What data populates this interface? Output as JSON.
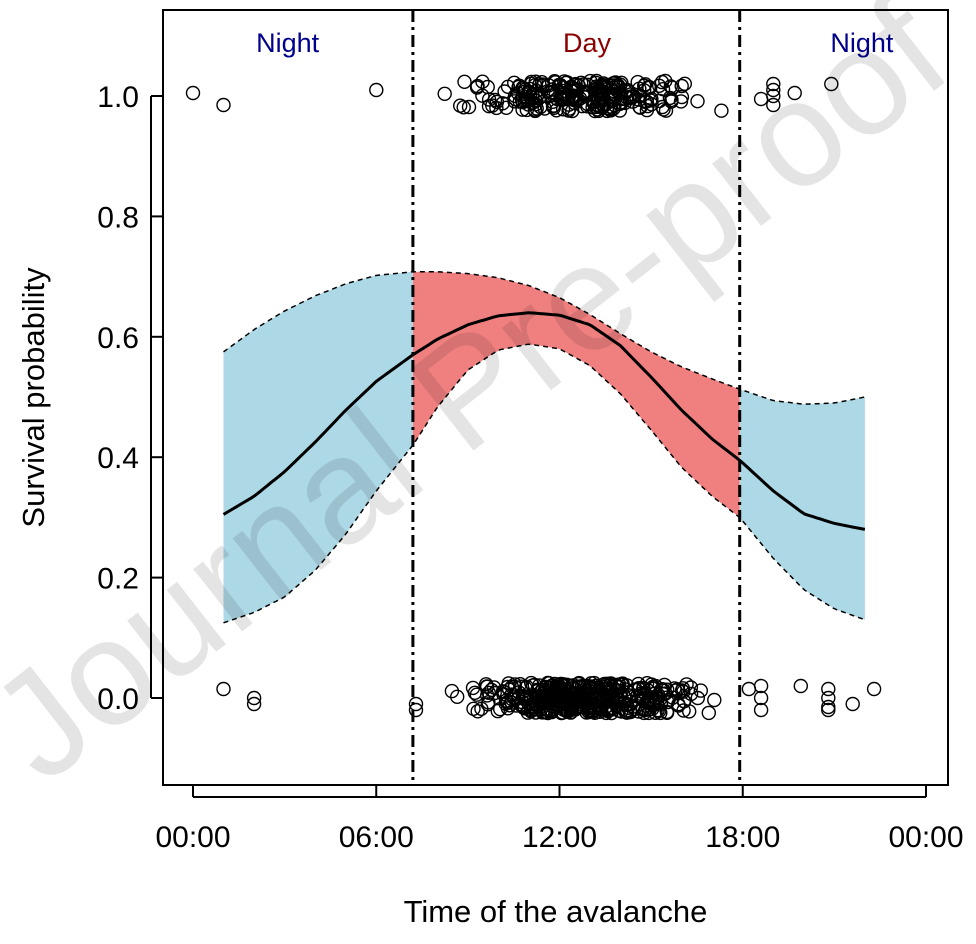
{
  "chart_data": {
    "type": "line",
    "title": "",
    "xlabel": "Time of the avalanche",
    "ylabel": "Survival probability",
    "xlim": [
      0,
      24
    ],
    "ylim": [
      -0.13,
      1.15
    ],
    "x_ticks": [
      0,
      6,
      12,
      18,
      24
    ],
    "x_tick_labels": [
      "00:00",
      "06:00",
      "12:00",
      "18:00",
      "00:00"
    ],
    "y_ticks": [
      0.0,
      0.2,
      0.4,
      0.6,
      0.8,
      1.0
    ],
    "y_tick_labels": [
      "0.0",
      "0.2",
      "0.4",
      "0.6",
      "0.8",
      "1.0"
    ],
    "grid": false,
    "colors": {
      "night_band": "#add8e6",
      "day_band": "#f08080",
      "night_text": "#00008b",
      "day_text": "#8b0000"
    },
    "period_boundaries": [
      7.2,
      17.9
    ],
    "period_labels": [
      {
        "text": "Night",
        "x": 3.1,
        "kind": "night"
      },
      {
        "text": "Day",
        "x": 12.9,
        "kind": "day"
      },
      {
        "text": "Night",
        "x": 21.9,
        "kind": "night"
      }
    ],
    "fitted_curve": {
      "x": [
        1.0,
        2.0,
        3.0,
        4.0,
        5.0,
        6.0,
        7.2,
        8.0,
        9.0,
        10.0,
        11.0,
        12.0,
        13.0,
        14.0,
        15.0,
        16.0,
        17.0,
        17.9,
        19.0,
        20.0,
        21.0,
        22.0
      ],
      "y": [
        0.305,
        0.335,
        0.376,
        0.425,
        0.478,
        0.526,
        0.57,
        0.596,
        0.62,
        0.635,
        0.64,
        0.636,
        0.62,
        0.585,
        0.533,
        0.478,
        0.43,
        0.395,
        0.344,
        0.306,
        0.29,
        0.28
      ],
      "upper": [
        0.575,
        0.612,
        0.643,
        0.668,
        0.688,
        0.702,
        0.708,
        0.708,
        0.705,
        0.698,
        0.685,
        0.665,
        0.637,
        0.605,
        0.575,
        0.55,
        0.53,
        0.513,
        0.494,
        0.488,
        0.49,
        0.5
      ],
      "lower": [
        0.125,
        0.142,
        0.168,
        0.212,
        0.272,
        0.344,
        0.42,
        0.483,
        0.545,
        0.578,
        0.588,
        0.58,
        0.552,
        0.505,
        0.445,
        0.383,
        0.335,
        0.3,
        0.232,
        0.18,
        0.148,
        0.13
      ]
    },
    "observations": {
      "survived_night": [
        {
          "x": 0.0,
          "y": 1.005
        },
        {
          "x": 1.0,
          "y": 0.985
        },
        {
          "x": 6.0,
          "y": 1.01
        },
        {
          "x": 18.6,
          "y": 0.995
        },
        {
          "x": 19.0,
          "y": 1.0
        },
        {
          "x": 19.0,
          "y": 1.02
        },
        {
          "x": 19.0,
          "y": 0.985
        },
        {
          "x": 19.0,
          "y": 1.01
        },
        {
          "x": 19.7,
          "y": 1.005
        },
        {
          "x": 20.9,
          "y": 1.02
        }
      ],
      "died_night": [
        {
          "x": 1.0,
          "y": 0.015
        },
        {
          "x": 2.0,
          "y": 0.0
        },
        {
          "x": 2.0,
          "y": -0.01
        },
        {
          "x": 7.3,
          "y": -0.01
        },
        {
          "x": 7.3,
          "y": -0.02
        },
        {
          "x": 18.2,
          "y": 0.015
        },
        {
          "x": 18.6,
          "y": 0.02
        },
        {
          "x": 18.6,
          "y": 0.0
        },
        {
          "x": 18.6,
          "y": -0.02
        },
        {
          "x": 19.9,
          "y": 0.02
        },
        {
          "x": 20.8,
          "y": 0.015
        },
        {
          "x": 20.8,
          "y": 0.0
        },
        {
          "x": 20.8,
          "y": -0.015
        },
        {
          "x": 20.8,
          "y": -0.02
        },
        {
          "x": 21.6,
          "y": -0.01
        },
        {
          "x": 22.3,
          "y": 0.015
        }
      ],
      "day_survived_count": 260,
      "day_died_count": 420
    }
  },
  "watermark": {
    "text": "Journal Pre-proof"
  }
}
